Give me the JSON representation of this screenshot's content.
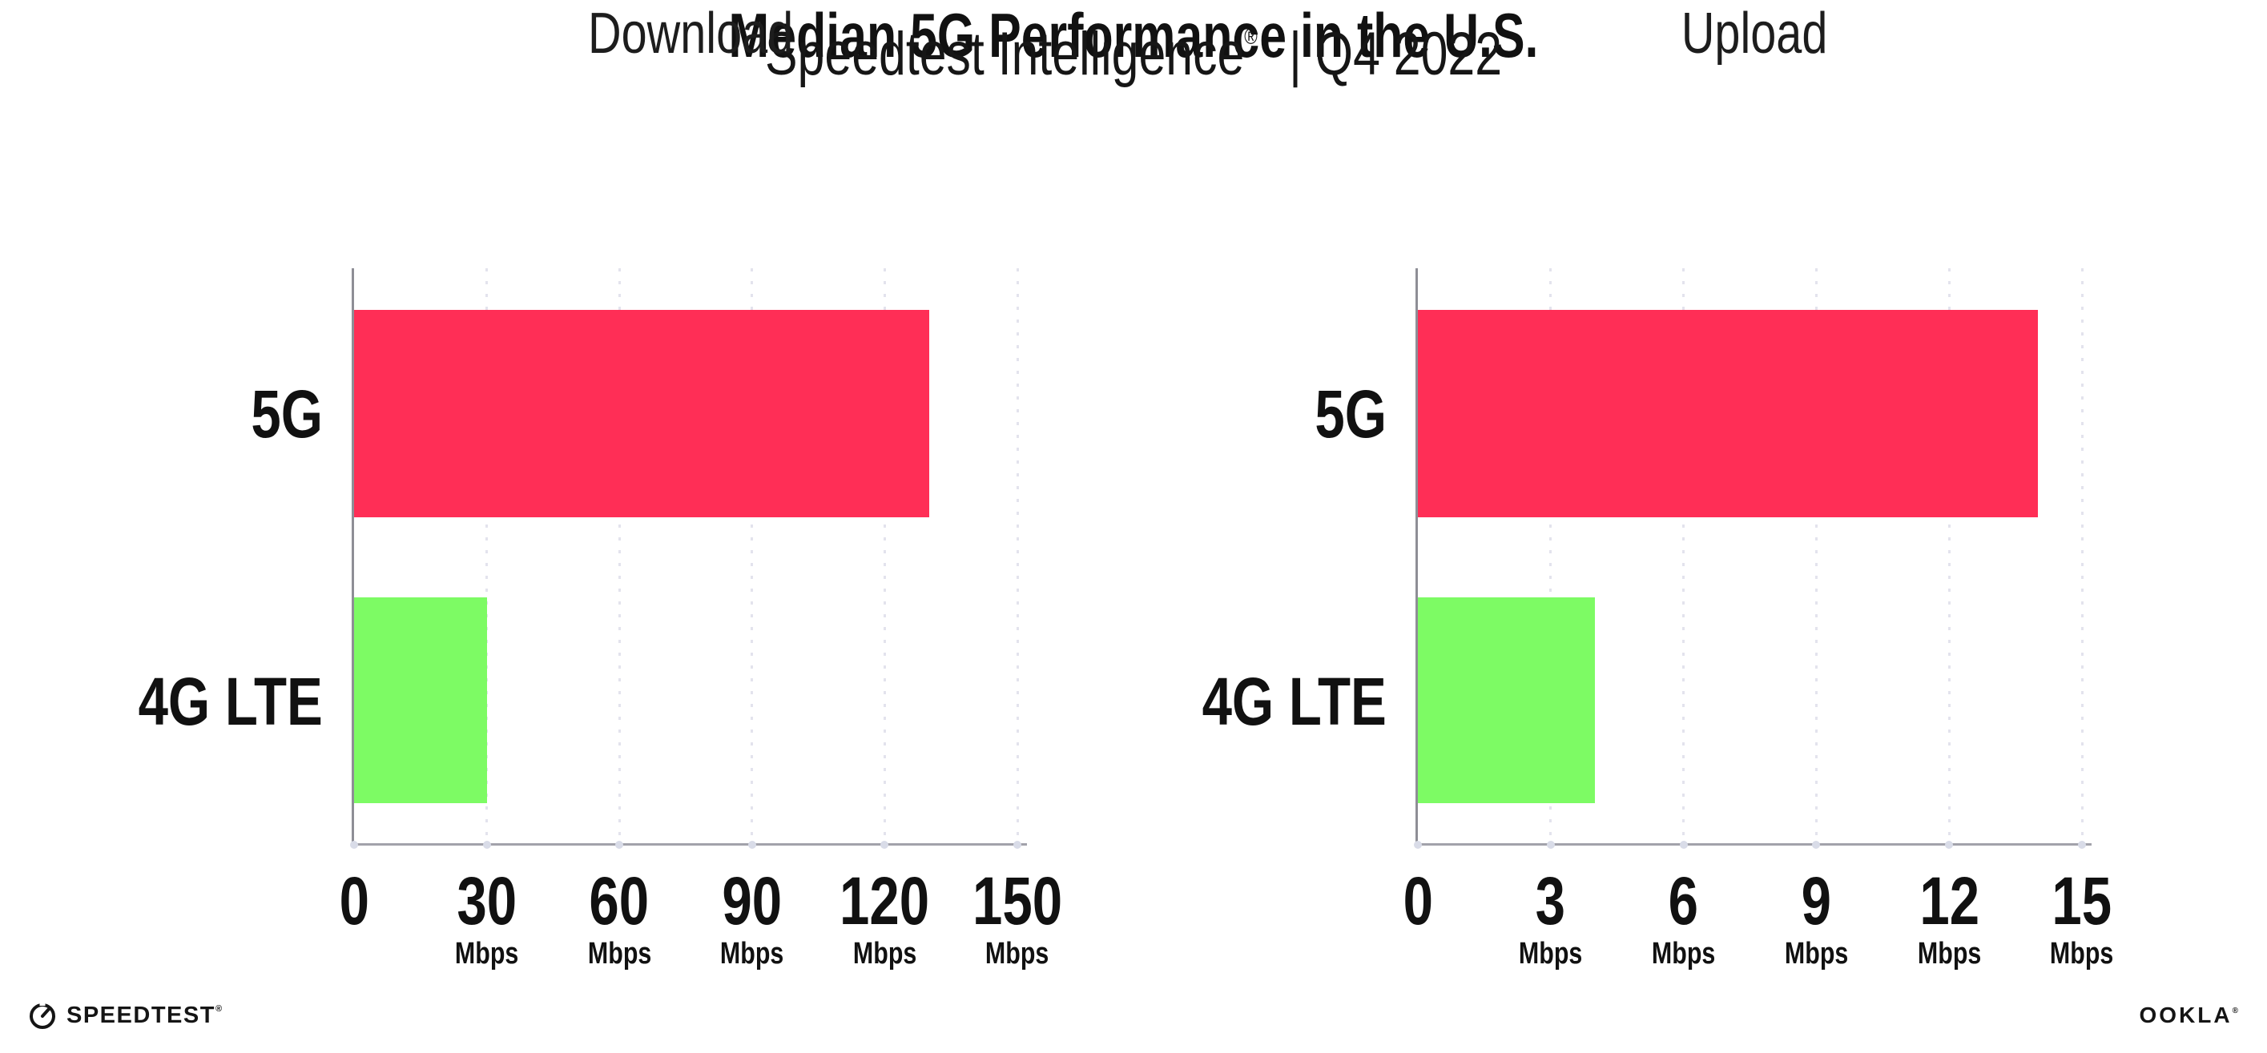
{
  "header": {
    "title": "Median 5G Performance in the U.S.",
    "subtitle_brand": "Speedtest Intelligence",
    "subtitle_reg": "®",
    "subtitle_tail": "| Q4 2022"
  },
  "chart_data": {
    "type": "bar",
    "orientation": "horizontal",
    "panels": [
      {
        "title": "Download",
        "categories": [
          "5G",
          "4G LTE"
        ],
        "values": [
          130,
          30
        ],
        "unit": "Mbps",
        "xlim": [
          0,
          150
        ],
        "xticks": [
          0,
          30,
          60,
          90,
          120,
          150
        ],
        "grid": "dotted-vertical"
      },
      {
        "title": "Upload",
        "categories": [
          "5G",
          "4G LTE"
        ],
        "values": [
          14,
          4
        ],
        "unit": "Mbps",
        "xlim": [
          0,
          15
        ],
        "xticks": [
          0,
          3,
          6,
          9,
          12,
          15
        ],
        "grid": "dotted-vertical"
      }
    ],
    "series_colors": {
      "5G": "#FF2E56",
      "4G LTE": "#7DFB64"
    },
    "legend": "none"
  },
  "footer": {
    "speedtest_logo_text": "SPEEDTEST",
    "speedtest_reg": "®",
    "ookla_logo_text": "OOKLA",
    "ookla_reg": "®"
  },
  "colors": {
    "bar_5g": "#FF2E56",
    "bar_4g_lte": "#7DFB64",
    "axis": "#9A9AA2",
    "gridline": "#E3E3ED",
    "text": "#111111",
    "background": "#FFFFFF"
  }
}
